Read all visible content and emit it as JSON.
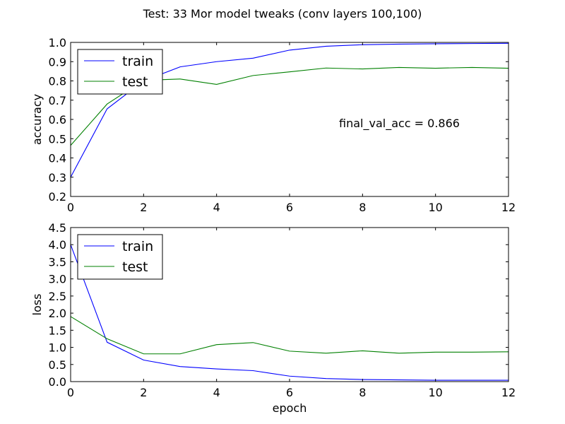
{
  "figure": {
    "suptitle": "Test: 33 Mor model tweaks (conv layers 100,100)"
  },
  "chart_data": [
    {
      "type": "line",
      "title": "",
      "xlabel": "",
      "ylabel": "accuracy",
      "xlim": [
        0,
        12
      ],
      "ylim": [
        0.2,
        1.0
      ],
      "xticks": [
        "0",
        "2",
        "4",
        "6",
        "8",
        "10",
        "12"
      ],
      "yticks": [
        "0.2",
        "0.3",
        "0.4",
        "0.5",
        "0.6",
        "0.7",
        "0.8",
        "0.9",
        "1.0"
      ],
      "x": [
        0,
        1,
        2,
        3,
        4,
        5,
        6,
        7,
        8,
        9,
        10,
        11,
        12
      ],
      "series": [
        {
          "name": "train",
          "color": "#0000ff",
          "values": [
            0.3,
            0.655,
            0.8,
            0.873,
            0.9,
            0.918,
            0.96,
            0.98,
            0.988,
            0.991,
            0.993,
            0.994,
            0.995
          ]
        },
        {
          "name": "test",
          "color": "#008000",
          "values": [
            0.465,
            0.68,
            0.803,
            0.81,
            0.782,
            0.828,
            0.847,
            0.867,
            0.862,
            0.87,
            0.866,
            0.87,
            0.866
          ]
        }
      ],
      "legend": "top-left",
      "annotation": "final_val_acc = 0.866",
      "grid": false
    },
    {
      "type": "line",
      "title": "",
      "xlabel": "epoch",
      "ylabel": "loss",
      "xlim": [
        0,
        12
      ],
      "ylim": [
        0.0,
        4.5
      ],
      "xticks": [
        "0",
        "2",
        "4",
        "6",
        "8",
        "10",
        "12"
      ],
      "yticks": [
        "0.0",
        "0.5",
        "1.0",
        "1.5",
        "2.0",
        "2.5",
        "3.0",
        "3.5",
        "4.0",
        "4.5"
      ],
      "x": [
        0,
        1,
        2,
        3,
        4,
        5,
        6,
        7,
        8,
        9,
        10,
        11,
        12
      ],
      "series": [
        {
          "name": "train",
          "color": "#0000ff",
          "values": [
            4.0,
            1.15,
            0.63,
            0.44,
            0.37,
            0.32,
            0.16,
            0.09,
            0.06,
            0.05,
            0.04,
            0.04,
            0.04
          ]
        },
        {
          "name": "test",
          "color": "#008000",
          "values": [
            1.9,
            1.25,
            0.81,
            0.81,
            1.08,
            1.14,
            0.89,
            0.83,
            0.9,
            0.83,
            0.86,
            0.86,
            0.87
          ]
        }
      ],
      "legend": "top-left",
      "grid": false
    }
  ]
}
